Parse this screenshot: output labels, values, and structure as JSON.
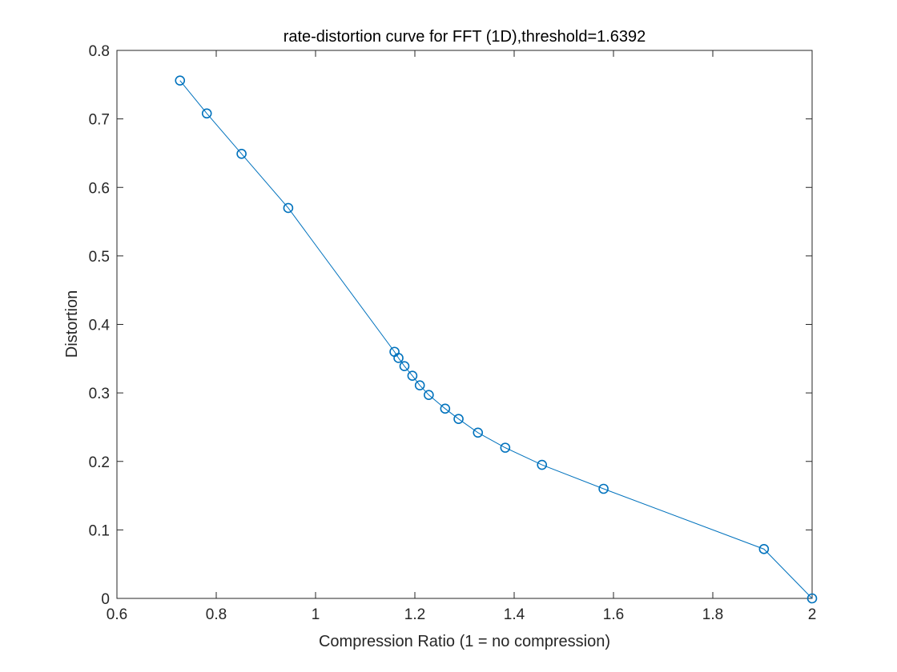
{
  "chart_data": {
    "type": "line",
    "title": "rate-distortion curve for FFT (1D),threshold=1.6392",
    "xlabel": "Compression Ratio (1 = no compression)",
    "ylabel": "Distortion",
    "xlim": [
      0.6,
      2
    ],
    "ylim": [
      0,
      0.8
    ],
    "xticks": [
      0.6,
      0.8,
      1,
      1.2,
      1.4,
      1.6,
      1.8,
      2
    ],
    "xtick_labels": [
      "0.6",
      "0.8",
      "1",
      "1.2",
      "1.4",
      "1.6",
      "1.8",
      "2"
    ],
    "yticks": [
      0,
      0.1,
      0.2,
      0.3,
      0.4,
      0.5,
      0.6,
      0.7,
      0.8
    ],
    "ytick_labels": [
      "0",
      "0.1",
      "0.2",
      "0.3",
      "0.4",
      "0.5",
      "0.6",
      "0.7",
      "0.8"
    ],
    "grid": false,
    "legend": "none",
    "marker": "circle",
    "color": "#0072bd",
    "x": [
      0.727,
      0.781,
      0.851,
      0.945,
      1.159,
      1.167,
      1.179,
      1.195,
      1.21,
      1.228,
      1.261,
      1.288,
      1.327,
      1.382,
      1.456,
      1.58,
      1.903,
      2.0
    ],
    "y": [
      0.756,
      0.708,
      0.649,
      0.57,
      0.36,
      0.351,
      0.339,
      0.325,
      0.311,
      0.297,
      0.277,
      0.262,
      0.242,
      0.22,
      0.195,
      0.16,
      0.072,
      0.0
    ]
  }
}
